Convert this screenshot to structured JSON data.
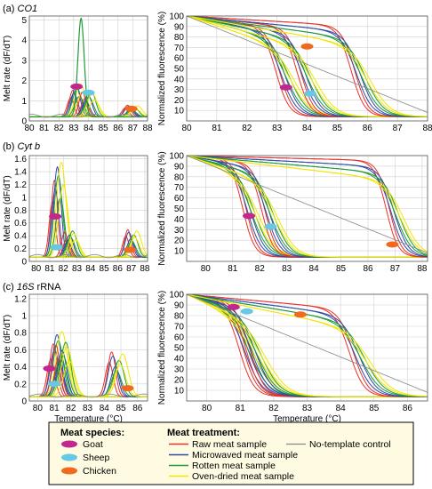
{
  "figure": {
    "rows": [
      {
        "panel_prefix": "(a) ",
        "panel_gene": "CO1",
        "gene_italic": true
      },
      {
        "panel_prefix": "(b) ",
        "panel_gene": "Cyt b",
        "gene_italic": true
      },
      {
        "panel_prefix": "(c) ",
        "panel_gene": "16S",
        "panel_suffix": " rRNA",
        "gene_italic": true
      }
    ],
    "melt_ylabel": "Melt rate (dF/dT)",
    "melt_xlabel": "Temperature (°C)",
    "norm_ylabel": "Normalized fluorescence (%)",
    "norm_xlabel": "Temperature (°C)",
    "colors": {
      "raw": "#e8322a",
      "microwaved": "#2f4aa8",
      "rotten": "#1e9a3a",
      "oven": "#f2e600",
      "ntc": "#888888",
      "goat": "#c2278f",
      "sheep": "#66c8e3",
      "chicken": "#ef6a1f",
      "grid": "#d0d0d0",
      "frame": "#555555"
    }
  },
  "legend": {
    "species_title": "Meat species:",
    "species": [
      {
        "label": "Goat",
        "color": "#c2278f"
      },
      {
        "label": "Sheep",
        "color": "#66c8e3"
      },
      {
        "label": "Chicken",
        "color": "#ef6a1f"
      }
    ],
    "treatment_title": "Meat treatment:",
    "treatments": [
      {
        "label": "Raw meat sample",
        "color": "#e8322a"
      },
      {
        "label": "Microwaved meat sample",
        "color": "#2f4aa8"
      },
      {
        "label": "Rotten meat sample",
        "color": "#1e9a3a"
      },
      {
        "label": "Oven-dried meat sample",
        "color": "#f2e600"
      }
    ],
    "control": {
      "label": "No-template control",
      "color": "#888888"
    }
  },
  "chart_data": [
    {
      "type": "line",
      "panel": "a-melt",
      "xlabel": "",
      "ylabel": "Melt rate (dF/dT)",
      "xlim": [
        80,
        88
      ],
      "ylim": [
        0,
        5.2
      ],
      "xticks": [
        80,
        81,
        82,
        83,
        84,
        85,
        86,
        87,
        88
      ],
      "yticks": [
        0,
        1,
        2,
        3,
        4,
        5
      ],
      "grid": true,
      "peaks": [
        {
          "species": "Goat",
          "tm": 83.2,
          "height": 1.7
        },
        {
          "species": "Sheep",
          "tm": 84.0,
          "height": 1.4
        },
        {
          "species": "Chicken",
          "tm": 86.9,
          "height": 0.6
        }
      ],
      "tallest_peak": {
        "tm": 83.5,
        "height": 4.9
      },
      "species_markers": [
        {
          "species": "Goat",
          "x": 83.2,
          "y": 1.7
        },
        {
          "species": "Sheep",
          "x": 84.0,
          "y": 1.4
        },
        {
          "species": "Chicken",
          "x": 86.9,
          "y": 0.6
        }
      ]
    },
    {
      "type": "line",
      "panel": "a-norm",
      "xlabel": "",
      "ylabel": "Normalized fluorescence (%)",
      "xlim": [
        80,
        88
      ],
      "ylim": [
        0,
        100
      ],
      "xticks": [
        80,
        81,
        82,
        83,
        84,
        85,
        86,
        87,
        88
      ],
      "yticks": [
        10,
        20,
        30,
        40,
        50,
        60,
        70,
        80,
        90,
        100
      ],
      "grid": true,
      "transitions": [
        {
          "species": "Goat",
          "tm": 83.3,
          "shelf": 88
        },
        {
          "species": "Sheep",
          "tm": 84.0,
          "shelf": 88
        },
        {
          "species": "Chicken",
          "tm": 85.8,
          "shelf": 90
        }
      ],
      "species_markers": [
        {
          "species": "Goat",
          "x": 83.3,
          "y": 32
        },
        {
          "species": "Sheep",
          "x": 84.1,
          "y": 26
        },
        {
          "species": "Chicken",
          "x": 84.0,
          "y": 71
        }
      ]
    },
    {
      "type": "line",
      "panel": "b-melt",
      "xlabel": "",
      "ylabel": "Melt rate (dF/dT)",
      "xlim": [
        79.5,
        88.2
      ],
      "ylim": [
        0,
        1.65
      ],
      "xticks": [
        80,
        81,
        82,
        83,
        84,
        85,
        86,
        87,
        88
      ],
      "yticks": [
        0,
        0.2,
        0.4,
        0.6,
        0.8,
        1,
        1.2,
        1.4,
        1.6
      ],
      "grid": true,
      "peaks": [
        {
          "species": "Goat",
          "tm": 81.6,
          "height": 1.55
        },
        {
          "species": "Sheep",
          "tm": 82.5,
          "height": 0.45
        },
        {
          "species": "Chicken",
          "tm": 87.0,
          "height": 0.45
        }
      ],
      "species_markers": [
        {
          "species": "Goat",
          "x": 81.4,
          "y": 0.7
        },
        {
          "species": "Sheep",
          "x": 81.5,
          "y": 0.22
        },
        {
          "species": "Chicken",
          "x": 86.9,
          "y": 0.18
        }
      ]
    },
    {
      "type": "line",
      "panel": "b-norm",
      "xlabel": "",
      "ylabel": "Normalized fluorescence (%)",
      "xlim": [
        79.3,
        88.2
      ],
      "ylim": [
        0,
        100
      ],
      "xticks": [
        80,
        81,
        82,
        83,
        84,
        85,
        86,
        87,
        88
      ],
      "yticks": [
        10,
        20,
        30,
        40,
        50,
        60,
        70,
        80,
        90,
        100
      ],
      "grid": true,
      "transitions": [
        {
          "species": "Goat",
          "tm": 81.7,
          "shelf": 96
        },
        {
          "species": "Sheep",
          "tm": 82.4,
          "shelf": 92
        },
        {
          "species": "Chicken",
          "tm": 87.0,
          "shelf": 95
        }
      ],
      "species_markers": [
        {
          "species": "Goat",
          "x": 81.6,
          "y": 43
        },
        {
          "species": "Sheep",
          "x": 82.4,
          "y": 33
        },
        {
          "species": "Chicken",
          "x": 86.9,
          "y": 16
        }
      ]
    },
    {
      "type": "line",
      "panel": "c-melt",
      "xlabel": "Temperature (°C)",
      "ylabel": "Melt rate (dF/dT)",
      "xlim": [
        79.5,
        86.6
      ],
      "ylim": [
        0,
        1.25
      ],
      "xticks": [
        80,
        81,
        82,
        83,
        84,
        85,
        86
      ],
      "yticks": [
        0,
        0.2,
        0.4,
        0.6,
        0.8,
        1,
        1.2
      ],
      "grid": true,
      "peaks": [
        {
          "species": "Goat",
          "tm": 81.2,
          "height": 0.8
        },
        {
          "species": "Sheep",
          "tm": 81.5,
          "height": 0.7
        },
        {
          "species": "Chicken",
          "tm": 84.7,
          "height": 0.55
        }
      ],
      "species_markers": [
        {
          "species": "Goat",
          "x": 80.7,
          "y": 0.38
        },
        {
          "species": "Sheep",
          "x": 81.0,
          "y": 0.2
        },
        {
          "species": "Chicken",
          "x": 85.4,
          "y": 0.15
        }
      ]
    },
    {
      "type": "line",
      "panel": "c-norm",
      "xlabel": "Temperature (°C)",
      "ylabel": "Normalized fluorescence (%)",
      "xlim": [
        79.4,
        86.6
      ],
      "ylim": [
        0,
        100
      ],
      "xticks": [
        80,
        81,
        82,
        83,
        84,
        85,
        86
      ],
      "yticks": [
        10,
        20,
        30,
        40,
        50,
        60,
        70,
        80,
        90,
        100
      ],
      "grid": true,
      "transitions": [
        {
          "species": "Goat",
          "tm": 81.3,
          "shelf": 92
        },
        {
          "species": "Sheep",
          "tm": 81.5,
          "shelf": 92
        },
        {
          "species": "Chicken",
          "tm": 84.6,
          "shelf": 85
        }
      ],
      "species_markers": [
        {
          "species": "Goat",
          "x": 80.8,
          "y": 88
        },
        {
          "species": "Sheep",
          "x": 81.2,
          "y": 84
        },
        {
          "species": "Chicken",
          "x": 82.8,
          "y": 81
        }
      ]
    }
  ]
}
